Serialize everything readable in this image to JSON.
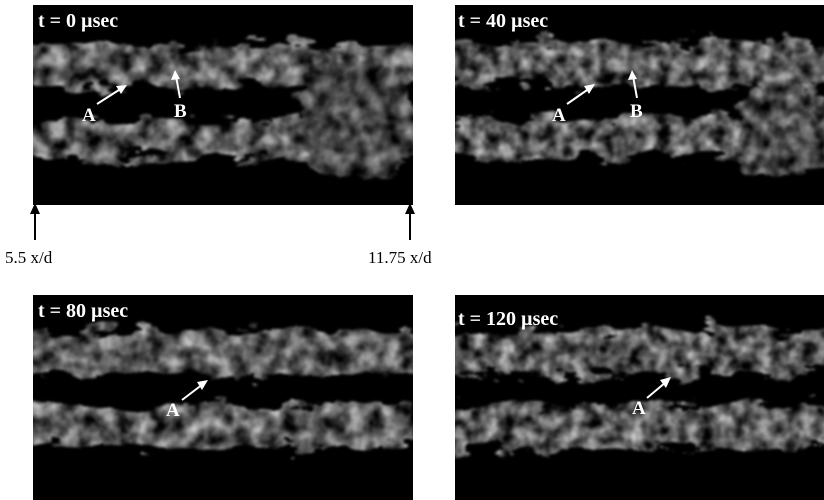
{
  "panels": [
    {
      "label": "t = 0 µsec",
      "annotations": [
        "A",
        "B"
      ]
    },
    {
      "label": "t = 40 µsec",
      "annotations": [
        "A",
        "B"
      ]
    },
    {
      "label": "t = 80 µsec",
      "annotations": [
        "A"
      ]
    },
    {
      "label": "t = 120 µsec",
      "annotations": [
        "A"
      ]
    }
  ],
  "axis_labels": [
    "5.5 x/d",
    "11.75 x/d"
  ]
}
